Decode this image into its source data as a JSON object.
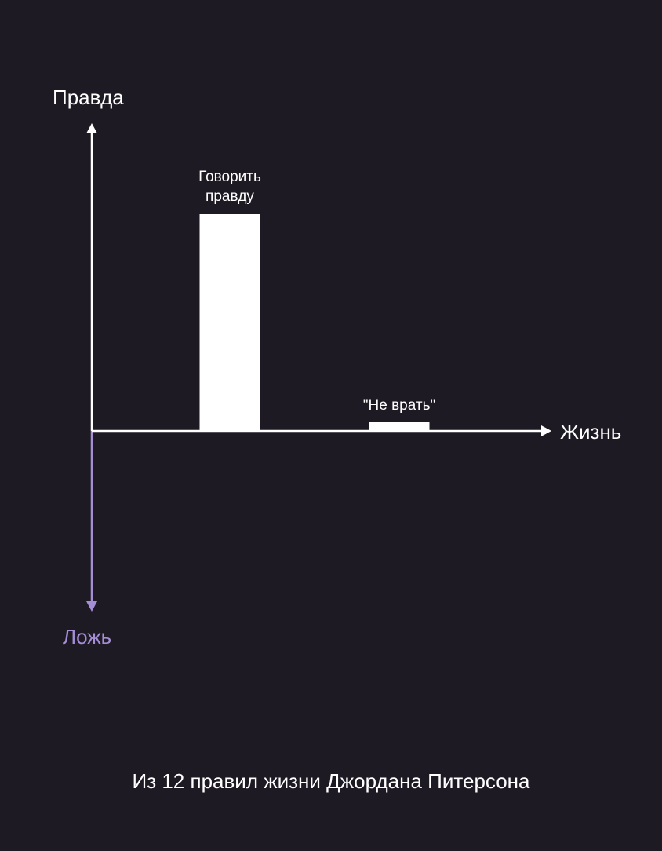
{
  "caption": "Из 12 правил жизни Джордана Питерсона",
  "colors": {
    "background": "#1e1a24",
    "positive": "#ffffff",
    "negative": "#a58ed6"
  },
  "chart_data": {
    "type": "bar",
    "title": "",
    "xlabel": "Жизнь",
    "ylabel_positive": "Правда",
    "ylabel_negative": "Ложь",
    "grid": false,
    "legend": "none",
    "categories": [
      "Говорить правду",
      "\"Не врать\""
    ],
    "values": [
      1.0,
      0.04
    ],
    "ylim": [
      -0.82,
      1.4
    ]
  }
}
